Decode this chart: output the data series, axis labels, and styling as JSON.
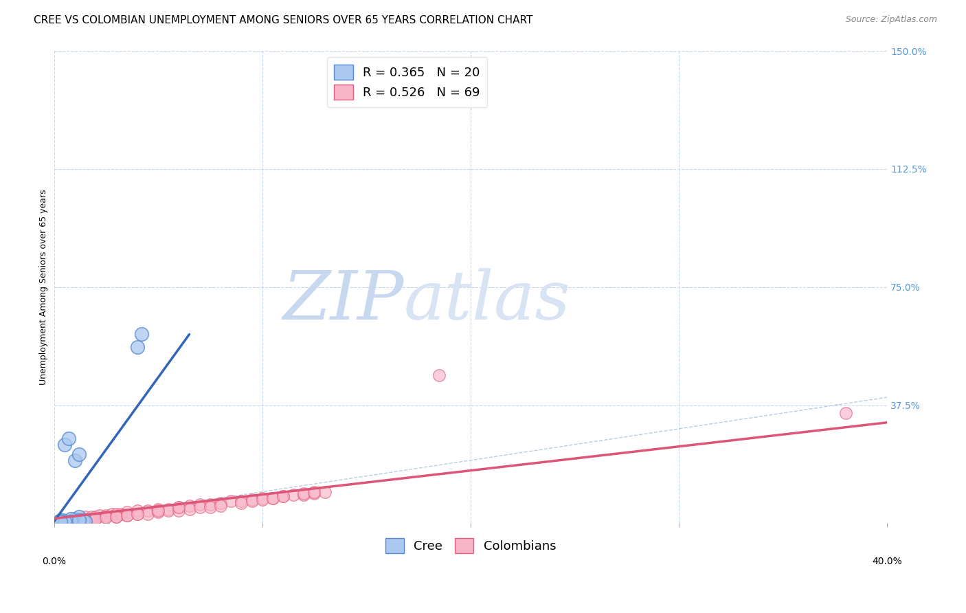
{
  "title": "CREE VS COLOMBIAN UNEMPLOYMENT AMONG SENIORS OVER 65 YEARS CORRELATION CHART",
  "source": "Source: ZipAtlas.com",
  "ylabel_left": "Unemployment Among Seniors over 65 years",
  "x_ticks": [
    0.0,
    0.1,
    0.2,
    0.3,
    0.4
  ],
  "y_right_ticks": [
    0.0,
    0.375,
    0.75,
    1.125,
    1.5
  ],
  "y_right_labels": [
    "",
    "37.5%",
    "75.0%",
    "112.5%",
    "150.0%"
  ],
  "xlim": [
    0.0,
    0.4
  ],
  "ylim": [
    0.0,
    1.5
  ],
  "cree_label": "R = 0.365   N = 20",
  "colombian_label": "R = 0.526   N = 69",
  "cree_color": "#aac8f0",
  "colombian_color": "#f8b4c8",
  "cree_edge_color": "#5588cc",
  "colombian_edge_color": "#e06080",
  "cree_line_color": "#3366bb",
  "colombian_line_color": "#dd5577",
  "diagonal_color": "#b8cce4",
  "background_color": "#ffffff",
  "grid_color": "#c8d8ec",
  "watermark_zip_color": "#c8d8f0",
  "watermark_atlas_color": "#d8e4f4",
  "cree_points_x": [
    0.005,
    0.007,
    0.009,
    0.01,
    0.012,
    0.014,
    0.015,
    0.003,
    0.004,
    0.006,
    0.008,
    0.01,
    0.012,
    0.04,
    0.042,
    0.002,
    0.008,
    0.012,
    0.005,
    0.003
  ],
  "cree_points_y": [
    0.25,
    0.27,
    0.01,
    0.015,
    0.02,
    0.01,
    0.005,
    0.01,
    0.01,
    0.005,
    0.015,
    0.2,
    0.22,
    0.56,
    0.6,
    0.005,
    0.005,
    0.01,
    0.005,
    0.005
  ],
  "colombian_points_x": [
    0.005,
    0.008,
    0.01,
    0.012,
    0.015,
    0.018,
    0.02,
    0.022,
    0.025,
    0.028,
    0.03,
    0.032,
    0.035,
    0.04,
    0.045,
    0.05,
    0.055,
    0.06,
    0.065,
    0.07,
    0.075,
    0.08,
    0.085,
    0.09,
    0.095,
    0.1,
    0.105,
    0.11,
    0.115,
    0.12,
    0.125,
    0.13,
    0.005,
    0.008,
    0.01,
    0.015,
    0.018,
    0.02,
    0.025,
    0.03,
    0.035,
    0.04,
    0.045,
    0.05,
    0.055,
    0.06,
    0.065,
    0.07,
    0.075,
    0.08,
    0.09,
    0.095,
    0.1,
    0.105,
    0.11,
    0.12,
    0.125,
    0.008,
    0.012,
    0.015,
    0.02,
    0.025,
    0.03,
    0.035,
    0.04,
    0.05,
    0.06,
    0.185,
    0.38
  ],
  "colombian_points_y": [
    0.01,
    0.01,
    0.015,
    0.015,
    0.02,
    0.02,
    0.02,
    0.025,
    0.025,
    0.03,
    0.03,
    0.03,
    0.035,
    0.04,
    0.04,
    0.045,
    0.045,
    0.05,
    0.055,
    0.06,
    0.06,
    0.065,
    0.07,
    0.07,
    0.075,
    0.08,
    0.08,
    0.085,
    0.09,
    0.09,
    0.095,
    0.1,
    0.005,
    0.008,
    0.01,
    0.012,
    0.015,
    0.015,
    0.02,
    0.02,
    0.025,
    0.03,
    0.03,
    0.035,
    0.04,
    0.04,
    0.045,
    0.05,
    0.05,
    0.055,
    0.065,
    0.07,
    0.075,
    0.08,
    0.085,
    0.095,
    0.1,
    0.005,
    0.008,
    0.01,
    0.015,
    0.018,
    0.02,
    0.025,
    0.03,
    0.04,
    0.05,
    0.47,
    0.35
  ],
  "cree_trend_x": [
    0.0,
    0.065
  ],
  "cree_trend_y": [
    0.005,
    0.6
  ],
  "colombian_trend_x": [
    0.0,
    0.4
  ],
  "colombian_trend_y": [
    0.015,
    0.32
  ],
  "title_fontsize": 11,
  "axis_label_fontsize": 9,
  "tick_fontsize": 10,
  "legend_fontsize": 13,
  "source_fontsize": 9
}
